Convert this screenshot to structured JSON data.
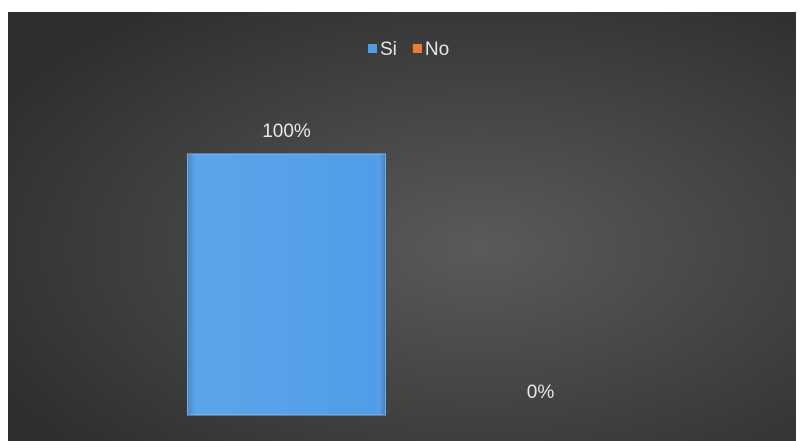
{
  "chart_data": {
    "type": "bar",
    "categories": [
      null
    ],
    "series": [
      {
        "name": "Si",
        "color": "#4f9de8",
        "values": [
          100
        ],
        "value_labels": [
          "100%"
        ]
      },
      {
        "name": "No",
        "color": "#ed7d31",
        "values": [
          0
        ],
        "value_labels": [
          "0%"
        ]
      }
    ],
    "ylim": [
      0,
      100
    ],
    "legend": "top"
  }
}
